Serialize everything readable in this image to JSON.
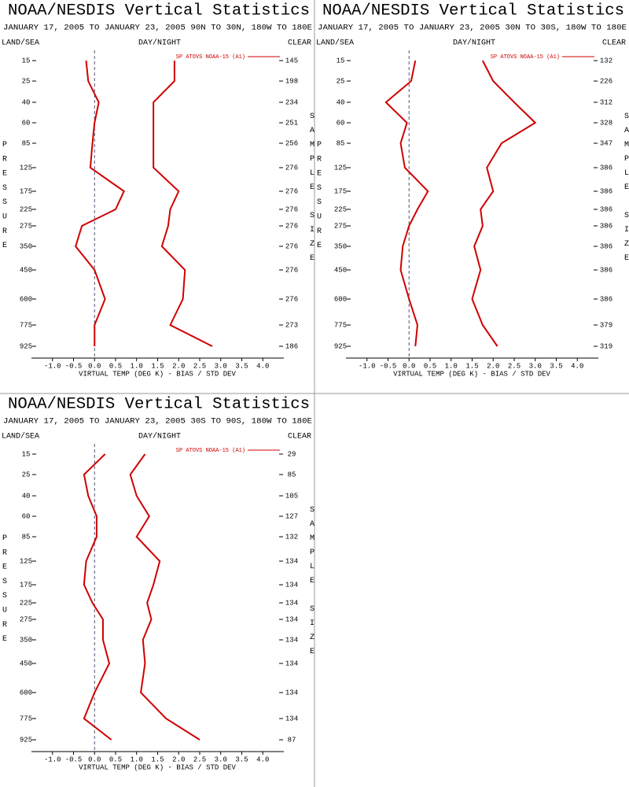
{
  "chart_data": [
    {
      "type": "line",
      "title": "NOAA/NESDIS Vertical Statistics",
      "subtitle": "JANUARY 17, 2005 TO JANUARY 23, 2005 90N TO 30N, 180W TO 180E",
      "left_header": "LAND/SEA",
      "center_header": "DAY/NIGHT",
      "right_header": "CLEAR",
      "y_label": "PRESSURE",
      "y2_label": "SAMPLE SIZE",
      "x_label": "VIRTUAL TEMP (DEG K) - BIAS / STD DEV",
      "categories": [
        "15",
        "25",
        "40",
        "60",
        "85",
        "125",
        "175",
        "225",
        "275",
        "350",
        "450",
        "600",
        "775",
        "925"
      ],
      "sample_size": [
        145,
        198,
        234,
        251,
        256,
        276,
        276,
        276,
        276,
        276,
        276,
        276,
        273,
        186
      ],
      "series": [
        {
          "name": "SP ATOVS NOAA-15 (A1)",
          "color": "#d00000",
          "values": [
            -0.2,
            -0.15,
            0.1,
            0.0,
            -0.05,
            -0.1,
            0.7,
            0.5,
            -0.3,
            -0.45,
            0.0,
            0.25,
            0.0,
            0.0
          ]
        },
        {
          "color": "#d00000",
          "values": [
            1.9,
            1.9,
            1.4,
            1.4,
            1.4,
            1.4,
            2.0,
            1.8,
            1.75,
            1.6,
            2.15,
            2.1,
            1.8,
            2.8
          ]
        }
      ],
      "xlim": [
        -1.5,
        4.5
      ],
      "xticks": [
        {
          "value": -1,
          "label": "-1.0"
        },
        -0.5,
        {
          "value": 0,
          "label": "0.0"
        },
        0.5,
        {
          "value": 1,
          "label": "1.0"
        },
        1.5,
        {
          "value": 2,
          "label": "2.0"
        },
        2.5,
        {
          "value": 3,
          "label": "3.0"
        },
        3.5,
        {
          "value": 4,
          "label": "4.0"
        }
      ]
    },
    {
      "type": "line",
      "title": "NOAA/NESDIS Vertical Statistics",
      "subtitle": "JANUARY 17, 2005 TO JANUARY 23, 2005 30N TO 30S, 180W TO 180E",
      "left_header": "LAND/SEA",
      "center_header": "DAY/NIGHT",
      "right_header": "CLEAR",
      "y_label": "PRESSURE",
      "y2_label": "SAMPLE SIZE",
      "x_label": "VIRTUAL TEMP (DEG K) - BIAS / STD DEV",
      "categories": [
        "15",
        "25",
        "40",
        "60",
        "85",
        "125",
        "175",
        "225",
        "275",
        "350",
        "450",
        "600",
        "775",
        "925"
      ],
      "sample_size": [
        132,
        226,
        312,
        328,
        347,
        386,
        386,
        386,
        386,
        386,
        386,
        386,
        379,
        319
      ],
      "series": [
        {
          "name": "SP ATOVS NOAA-15 (A1)",
          "color": "#d00000",
          "values": [
            0.15,
            0.05,
            -0.55,
            -0.05,
            -0.2,
            -0.1,
            0.45,
            0.2,
            0.0,
            -0.15,
            -0.2,
            0.0,
            0.2,
            0.15
          ]
        },
        {
          "color": "#d00000",
          "values": [
            1.75,
            2.0,
            2.5,
            3.0,
            2.2,
            1.85,
            2.0,
            1.7,
            1.75,
            1.55,
            1.7,
            1.5,
            1.75,
            2.1
          ]
        }
      ],
      "xlim": [
        -1.5,
        4.5
      ],
      "xticks": [
        {
          "value": -1,
          "label": "-1.0"
        },
        -0.5,
        {
          "value": 0,
          "label": "0.0"
        },
        0.5,
        {
          "value": 1,
          "label": "1.0"
        },
        1.5,
        {
          "value": 2,
          "label": "2.0"
        },
        2.5,
        {
          "value": 3,
          "label": "3.0"
        },
        3.5,
        {
          "value": 4,
          "label": "4.0"
        }
      ]
    },
    {
      "type": "line",
      "title": "NOAA/NESDIS Vertical Statistics",
      "subtitle": "JANUARY 17, 2005 TO JANUARY 23, 2005 30S TO 90S, 180W TO 180E",
      "left_header": "LAND/SEA",
      "center_header": "DAY/NIGHT",
      "right_header": "CLEAR",
      "y_label": "PRESSURE",
      "y2_label": "SAMPLE SIZE",
      "x_label": "VIRTUAL TEMP (DEG K) - BIAS / STD DEV",
      "categories": [
        "15",
        "25",
        "40",
        "60",
        "85",
        "125",
        "175",
        "225",
        "275",
        "350",
        "450",
        "600",
        "775",
        "925"
      ],
      "sample_size": [
        29,
        85,
        105,
        127,
        132,
        134,
        134,
        134,
        134,
        134,
        134,
        134,
        134,
        87
      ],
      "series": [
        {
          "name": "SP ATOVS NOAA-15 (A1)",
          "color": "#d00000",
          "values": [
            0.25,
            -0.25,
            -0.15,
            0.05,
            0.05,
            -0.2,
            -0.25,
            -0.05,
            0.2,
            0.2,
            0.35,
            0.0,
            -0.25,
            0.4
          ]
        },
        {
          "color": "#d00000",
          "values": [
            1.2,
            0.85,
            1.0,
            1.3,
            1.0,
            1.55,
            1.4,
            1.25,
            1.35,
            1.15,
            1.2,
            1.1,
            1.7,
            2.5
          ]
        }
      ],
      "xlim": [
        -1.5,
        4.5
      ],
      "xticks": [
        {
          "value": -1,
          "label": "-1.0"
        },
        -0.5,
        {
          "value": 0,
          "label": "0.0"
        },
        0.5,
        {
          "value": 1,
          "label": "1.0"
        },
        1.5,
        {
          "value": 2,
          "label": "2.0"
        },
        2.5,
        {
          "value": 3,
          "label": "3.0"
        },
        3.5,
        {
          "value": 4,
          "label": "4.0"
        }
      ]
    }
  ]
}
